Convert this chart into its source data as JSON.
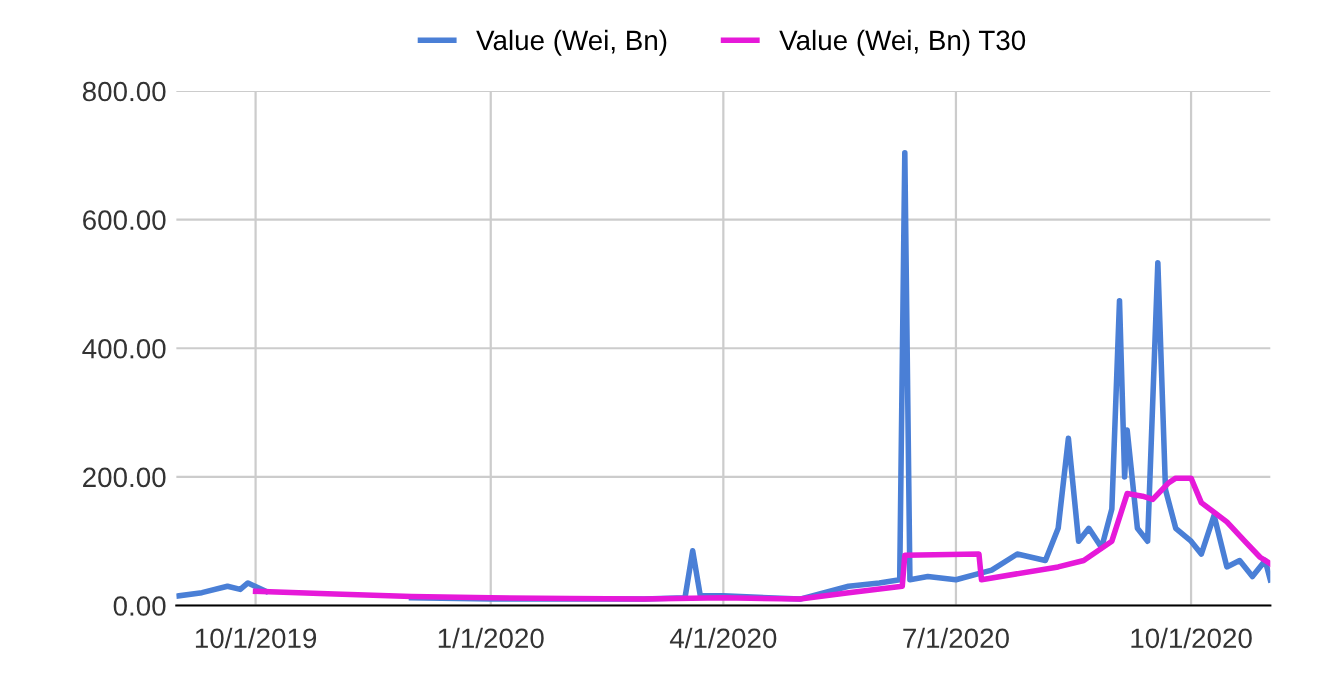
{
  "chart_data": {
    "type": "line",
    "xlim": [
      "2019-08-31",
      "2020-11-01"
    ],
    "ylim": [
      0,
      800
    ],
    "xticks": [
      {
        "value": "2019-10-01",
        "label": "10/1/2019"
      },
      {
        "value": "2020-01-01",
        "label": "1/1/2020"
      },
      {
        "value": "2020-04-01",
        "label": "4/1/2020"
      },
      {
        "value": "2020-07-01",
        "label": "7/1/2020"
      },
      {
        "value": "2020-10-01",
        "label": "10/1/2020"
      }
    ],
    "yticks": [
      {
        "value": 0,
        "label": "0.00"
      },
      {
        "value": 200,
        "label": "200.00"
      },
      {
        "value": 400,
        "label": "400.00"
      },
      {
        "value": 600,
        "label": "600.00"
      },
      {
        "value": 800,
        "label": "800.00"
      }
    ],
    "grid": true,
    "legend": "top",
    "marker": "none",
    "line_style": "solid",
    "series": [
      {
        "name": "Value (Wei, Bn)",
        "color": "#4a7fd6",
        "x": [
          "2019-09-01",
          "2019-09-10",
          "2019-09-20",
          "2019-09-25",
          "2019-09-28",
          "2019-10-05",
          "2019-11-01",
          "2019-12-01",
          "2020-01-01",
          "2020-02-01",
          "2020-03-01",
          "2020-03-17",
          "2020-03-20",
          "2020-03-23",
          "2020-04-01",
          "2020-05-01",
          "2020-05-20",
          "2020-06-01",
          "2020-06-09",
          "2020-06-11",
          "2020-06-13",
          "2020-06-20",
          "2020-07-01",
          "2020-07-15",
          "2020-07-25",
          "2020-08-05",
          "2020-08-10",
          "2020-08-14",
          "2020-08-18",
          "2020-08-22",
          "2020-08-27",
          "2020-08-31",
          "2020-09-03",
          "2020-09-05",
          "2020-09-06",
          "2020-09-10",
          "2020-09-14",
          "2020-09-18",
          "2020-09-21",
          "2020-09-25",
          "2020-10-01",
          "2020-10-05",
          "2020-10-10",
          "2020-10-15",
          "2020-10-20",
          "2020-10-25",
          "2020-10-30",
          "2020-11-01"
        ],
        "values": [
          15,
          20,
          30,
          25,
          35,
          22,
          null,
          12,
          10,
          10,
          10,
          12,
          85,
          15,
          15,
          10,
          30,
          35,
          40,
          704,
          40,
          45,
          40,
          55,
          80,
          70,
          120,
          260,
          100,
          120,
          90,
          150,
          474,
          200,
          273,
          120,
          100,
          533,
          180,
          120,
          100,
          80,
          140,
          60,
          70,
          45,
          70,
          40
        ]
      },
      {
        "name": "Value (Wei, Bn) T30",
        "color": "#e619d9",
        "x": [
          "2019-10-01",
          "2019-11-01",
          "2019-12-01",
          "2020-01-01",
          "2020-02-01",
          "2020-03-01",
          "2020-04-01",
          "2020-05-01",
          "2020-05-20",
          "2020-06-10",
          "2020-06-11",
          "2020-07-10",
          "2020-07-11",
          "2020-08-10",
          "2020-08-20",
          "2020-08-31",
          "2020-09-06",
          "2020-09-12",
          "2020-09-16",
          "2020-09-22",
          "2020-09-25",
          "2020-10-01",
          "2020-10-05",
          "2020-10-15",
          "2020-10-22",
          "2020-10-28",
          "2020-11-01"
        ],
        "values": [
          22,
          18,
          14,
          12,
          11,
          10,
          12,
          10,
          20,
          30,
          78,
          80,
          40,
          60,
          70,
          100,
          174,
          170,
          165,
          190,
          198,
          198,
          160,
          130,
          100,
          75,
          65
        ]
      }
    ]
  }
}
